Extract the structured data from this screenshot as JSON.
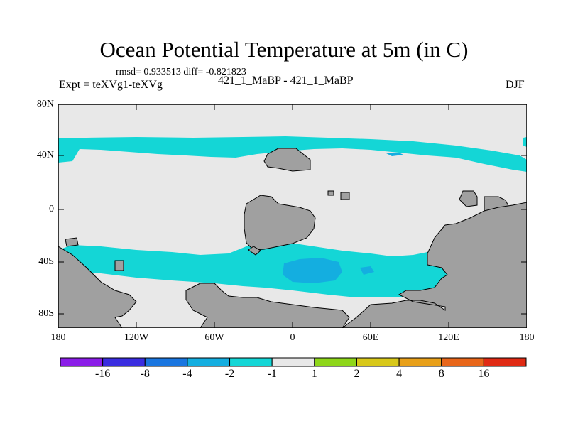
{
  "header": {
    "title": "Ocean Potential Temperature at 5m (in C)",
    "stats": "rmsd= 0.933513 diff= -0.821823",
    "experiment": "Expt = teXVg1-teXVg",
    "experiment_pair": "421_1_MaBP - 421_1_MaBP",
    "season": "DJF"
  },
  "map": {
    "lat_labels": [
      "80N",
      "40N",
      "0",
      "40S",
      "80S"
    ],
    "lon_labels": [
      "180",
      "120W",
      "60W",
      "0",
      "60E",
      "120E",
      "180"
    ],
    "colors": {
      "land": "#a0a0a0",
      "neutral": "#e8e8e8",
      "cyan": "#14d6d6",
      "light_blue": "#14aee0"
    }
  },
  "colorbar": {
    "labels": [
      "-16",
      "-8",
      "-4",
      "-2",
      "-1",
      "1",
      "2",
      "4",
      "8",
      "16"
    ],
    "colors": [
      "#8b1de8",
      "#3a2de0",
      "#1a76e0",
      "#14aee0",
      "#14d6d6",
      "#e8e8e8",
      "#8ed61a",
      "#d8c81a",
      "#e8a01a",
      "#e8661a",
      "#e02a14"
    ]
  }
}
